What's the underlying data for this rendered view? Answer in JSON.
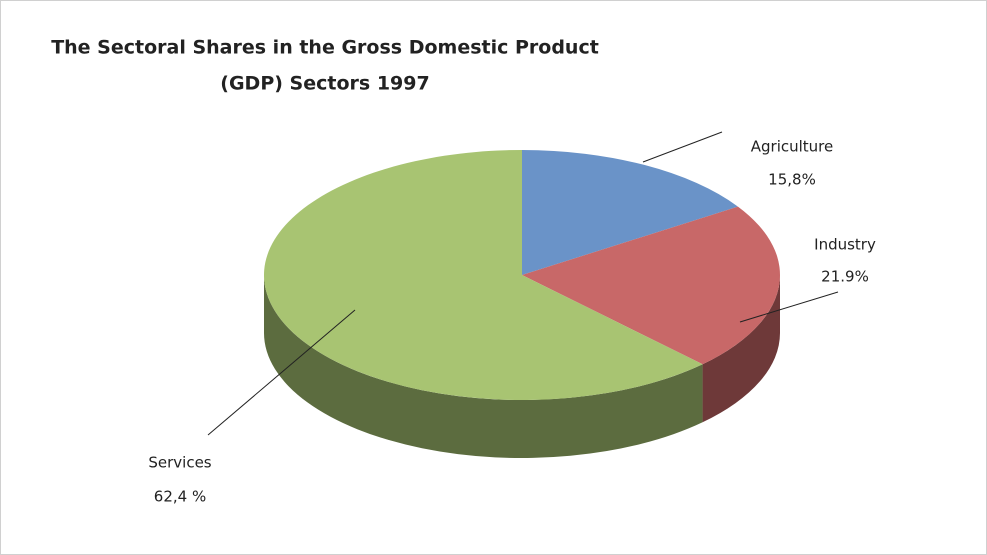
{
  "chart_data": {
    "type": "pie",
    "title": [
      "The Sectoral Shares in the Gross Domestic Product",
      "(GDP) Sectors 1997"
    ],
    "categories": [
      "Agriculture",
      "Industry",
      "Services"
    ],
    "values": [
      15.8,
      21.9,
      62.4
    ],
    "value_labels": [
      "15,8%",
      "21.9%",
      "62,4 %"
    ],
    "colors": [
      "#6a93c8",
      "#c86868",
      "#a8c472"
    ]
  }
}
